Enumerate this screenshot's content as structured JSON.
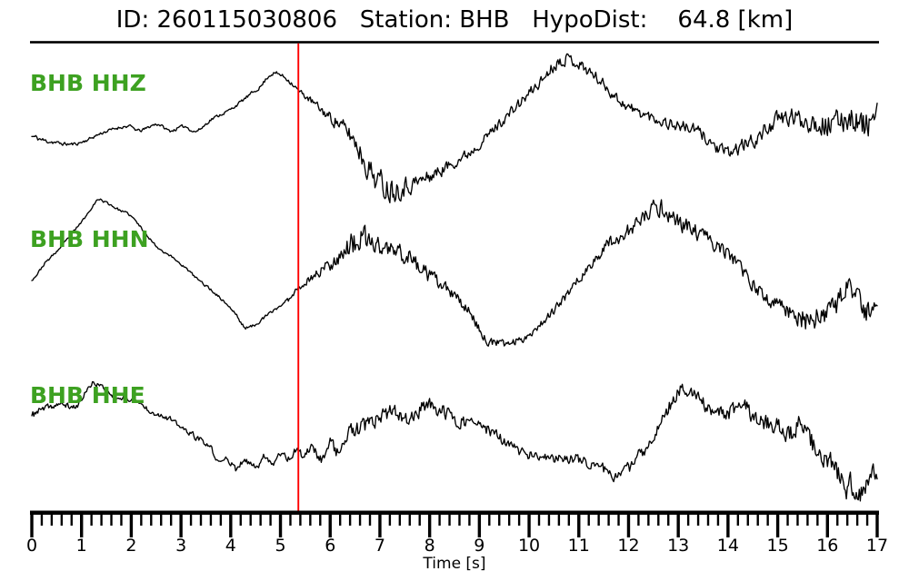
{
  "header": {
    "title": "ID: 260115030806   Station: BHB   HypoDist:    64.8 [km]"
  },
  "chart_data": {
    "type": "line",
    "title": "ID: 260115030806   Station: BHB   HypoDist:    64.8 [km]",
    "station": "BHB",
    "event_id": "260115030806",
    "hypodist_km": 64.8,
    "xlabel": "Time [s]",
    "x_range": [
      0,
      17
    ],
    "x_major_tick_s": 1,
    "x_minor_tick_s": 0.2,
    "grid": false,
    "legend_position": "none",
    "pick_line": {
      "time_s": 5.36,
      "color": "#ff0000"
    },
    "trace_color": "#000000",
    "axis_color": "#000000",
    "channel_label_color": "#3da121",
    "series": [
      {
        "name": "BHB HHZ",
        "seed": 11,
        "shape": [
          [
            0,
            -0.13
          ],
          [
            0.27,
            -0.19
          ],
          [
            0.88,
            -0.23
          ],
          [
            1.5,
            -0.06
          ],
          [
            1.96,
            0.01
          ],
          [
            2.16,
            -0.05
          ],
          [
            2.52,
            0.04
          ],
          [
            2.78,
            -0.05
          ],
          [
            3.07,
            0.01
          ],
          [
            3.29,
            -0.06
          ],
          [
            3.62,
            0.11
          ],
          [
            3.99,
            0.24
          ],
          [
            4.3,
            0.4
          ],
          [
            4.61,
            0.56
          ],
          [
            4.76,
            0.7
          ],
          [
            4.9,
            0.74
          ],
          [
            5.05,
            0.7
          ],
          [
            5.2,
            0.62
          ],
          [
            5.36,
            0.5
          ],
          [
            5.67,
            0.33
          ],
          [
            5.95,
            0.16
          ],
          [
            6.22,
            0.02
          ],
          [
            6.49,
            -0.19
          ],
          [
            6.77,
            -0.56
          ],
          [
            7.0,
            -0.75
          ],
          [
            7.23,
            -0.84
          ],
          [
            7.5,
            -0.81
          ],
          [
            7.77,
            -0.75
          ],
          [
            8.14,
            -0.63
          ],
          [
            8.5,
            -0.48
          ],
          [
            8.87,
            -0.31
          ],
          [
            9.33,
            0.0
          ],
          [
            9.79,
            0.31
          ],
          [
            10.24,
            0.63
          ],
          [
            10.56,
            0.88
          ],
          [
            10.79,
            0.94
          ],
          [
            11.12,
            0.81
          ],
          [
            11.43,
            0.63
          ],
          [
            11.85,
            0.35
          ],
          [
            12.17,
            0.21
          ],
          [
            12.77,
            0.06
          ],
          [
            13.39,
            -0.06
          ],
          [
            13.94,
            -0.35
          ],
          [
            14.31,
            -0.25
          ],
          [
            14.6,
            -0.15
          ],
          [
            14.91,
            0.06
          ],
          [
            15.22,
            0.13
          ],
          [
            15.51,
            0.1
          ],
          [
            15.82,
            0.06
          ],
          [
            16.13,
            0.03
          ],
          [
            16.43,
            0.15
          ],
          [
            16.74,
            0.03
          ],
          [
            17,
            0.15
          ]
        ],
        "noise_env": [
          [
            0,
            0.05
          ],
          [
            0.5,
            0.03
          ],
          [
            1,
            0.025
          ],
          [
            2,
            0.025
          ],
          [
            3,
            0.025
          ],
          [
            4,
            0.025
          ],
          [
            4.8,
            0.03
          ],
          [
            5.36,
            0.04
          ],
          [
            5.8,
            0.07
          ],
          [
            6.2,
            0.12
          ],
          [
            6.7,
            0.2
          ],
          [
            7.2,
            0.23
          ],
          [
            7.6,
            0.15
          ],
          [
            8.2,
            0.1
          ],
          [
            9,
            0.08
          ],
          [
            10,
            0.09
          ],
          [
            10.8,
            0.1
          ],
          [
            11.5,
            0.09
          ],
          [
            12.5,
            0.09
          ],
          [
            13.5,
            0.1
          ],
          [
            14.5,
            0.12
          ],
          [
            15.3,
            0.15
          ],
          [
            16,
            0.2
          ],
          [
            16.6,
            0.23
          ],
          [
            17,
            0.2
          ]
        ]
      },
      {
        "name": "BHB HHN",
        "seed": 23,
        "shape": [
          [
            0,
            -0.1
          ],
          [
            0.27,
            0.13
          ],
          [
            0.59,
            0.35
          ],
          [
            0.88,
            0.59
          ],
          [
            1.06,
            0.75
          ],
          [
            1.32,
            0.99
          ],
          [
            1.43,
            0.98
          ],
          [
            1.79,
            0.85
          ],
          [
            1.98,
            0.78
          ],
          [
            2.29,
            0.54
          ],
          [
            2.52,
            0.35
          ],
          [
            2.78,
            0.23
          ],
          [
            3.02,
            0.1
          ],
          [
            3.33,
            -0.09
          ],
          [
            3.62,
            -0.25
          ],
          [
            3.93,
            -0.44
          ],
          [
            4.12,
            -0.59
          ],
          [
            4.24,
            -0.73
          ],
          [
            4.35,
            -0.76
          ],
          [
            4.54,
            -0.69
          ],
          [
            4.85,
            -0.53
          ],
          [
            5.16,
            -0.38
          ],
          [
            5.36,
            -0.21
          ],
          [
            5.45,
            -0.16
          ],
          [
            5.76,
            0.0
          ],
          [
            6.07,
            0.16
          ],
          [
            6.37,
            0.35
          ],
          [
            6.68,
            0.44
          ],
          [
            6.99,
            0.35
          ],
          [
            7.28,
            0.29
          ],
          [
            7.59,
            0.21
          ],
          [
            7.9,
            0.0
          ],
          [
            8.2,
            -0.16
          ],
          [
            8.51,
            -0.34
          ],
          [
            8.82,
            -0.56
          ],
          [
            9.11,
            -0.91
          ],
          [
            9.42,
            -0.98
          ],
          [
            9.73,
            -0.95
          ],
          [
            10.03,
            -0.84
          ],
          [
            10.34,
            -0.63
          ],
          [
            10.65,
            -0.41
          ],
          [
            10.94,
            -0.13
          ],
          [
            11.25,
            0.09
          ],
          [
            11.56,
            0.38
          ],
          [
            11.86,
            0.5
          ],
          [
            12.17,
            0.66
          ],
          [
            12.48,
            0.85
          ],
          [
            12.66,
            0.88
          ],
          [
            13.08,
            0.66
          ],
          [
            13.39,
            0.54
          ],
          [
            13.69,
            0.41
          ],
          [
            14.0,
            0.25
          ],
          [
            14.31,
            0.0
          ],
          [
            14.6,
            -0.25
          ],
          [
            14.91,
            -0.41
          ],
          [
            15.22,
            -0.5
          ],
          [
            15.51,
            -0.63
          ],
          [
            15.82,
            -0.63
          ],
          [
            16.13,
            -0.5
          ],
          [
            16.43,
            -0.21
          ],
          [
            16.74,
            -0.54
          ],
          [
            17,
            -0.46
          ]
        ],
        "noise_env": [
          [
            0,
            0.02
          ],
          [
            1,
            0.02
          ],
          [
            2,
            0.02
          ],
          [
            3,
            0.02
          ],
          [
            4,
            0.025
          ],
          [
            5,
            0.03
          ],
          [
            5.4,
            0.05
          ],
          [
            6,
            0.12
          ],
          [
            6.5,
            0.22
          ],
          [
            7,
            0.2
          ],
          [
            7.5,
            0.15
          ],
          [
            8,
            0.12
          ],
          [
            9,
            0.07
          ],
          [
            10,
            0.06
          ],
          [
            11,
            0.07
          ],
          [
            12,
            0.12
          ],
          [
            12.7,
            0.15
          ],
          [
            13.5,
            0.13
          ],
          [
            14,
            0.1
          ],
          [
            15,
            0.12
          ],
          [
            15.5,
            0.24
          ],
          [
            16,
            0.16
          ],
          [
            16.5,
            0.22
          ],
          [
            17,
            0.16
          ]
        ]
      },
      {
        "name": "BHB HHE",
        "seed": 37,
        "shape": [
          [
            0,
            0.4
          ],
          [
            0.1,
            0.46
          ],
          [
            0.27,
            0.5
          ],
          [
            0.59,
            0.56
          ],
          [
            0.88,
            0.53
          ],
          [
            1.19,
            0.81
          ],
          [
            1.32,
            0.84
          ],
          [
            1.5,
            0.73
          ],
          [
            1.79,
            0.65
          ],
          [
            2.1,
            0.6
          ],
          [
            2.41,
            0.46
          ],
          [
            2.71,
            0.38
          ],
          [
            3.02,
            0.23
          ],
          [
            3.33,
            0.09
          ],
          [
            3.62,
            -0.06
          ],
          [
            3.75,
            -0.25
          ],
          [
            3.93,
            -0.19
          ],
          [
            4.12,
            -0.35
          ],
          [
            4.24,
            -0.23
          ],
          [
            4.54,
            -0.29
          ],
          [
            4.67,
            -0.15
          ],
          [
            4.85,
            -0.25
          ],
          [
            5.03,
            -0.1
          ],
          [
            5.16,
            -0.19
          ],
          [
            5.34,
            -0.06
          ],
          [
            5.45,
            -0.15
          ],
          [
            5.63,
            -0.03
          ],
          [
            5.82,
            -0.19
          ],
          [
            6.0,
            0.03
          ],
          [
            6.18,
            -0.1
          ],
          [
            6.37,
            0.15
          ],
          [
            6.68,
            0.23
          ],
          [
            6.99,
            0.35
          ],
          [
            7.28,
            0.44
          ],
          [
            7.59,
            0.35
          ],
          [
            7.9,
            0.53
          ],
          [
            8.2,
            0.48
          ],
          [
            8.51,
            0.35
          ],
          [
            9.11,
            0.23
          ],
          [
            9.73,
            -0.06
          ],
          [
            10.34,
            -0.19
          ],
          [
            10.94,
            -0.19
          ],
          [
            11.56,
            -0.35
          ],
          [
            11.67,
            -0.41
          ],
          [
            11.86,
            -0.4
          ],
          [
            12.17,
            -0.19
          ],
          [
            12.48,
            0.1
          ],
          [
            12.77,
            0.44
          ],
          [
            13.03,
            0.78
          ],
          [
            13.26,
            0.69
          ],
          [
            13.57,
            0.53
          ],
          [
            13.69,
            0.48
          ],
          [
            14.0,
            0.44
          ],
          [
            14.31,
            0.53
          ],
          [
            14.6,
            0.35
          ],
          [
            14.91,
            0.28
          ],
          [
            15.22,
            0.15
          ],
          [
            15.51,
            0.28
          ],
          [
            15.82,
            -0.15
          ],
          [
            16.13,
            -0.28
          ],
          [
            16.37,
            -0.62
          ],
          [
            16.43,
            -0.4
          ],
          [
            16.56,
            -0.75
          ],
          [
            16.74,
            -0.6
          ],
          [
            16.92,
            -0.3
          ],
          [
            17,
            -0.45
          ]
        ],
        "noise_env": [
          [
            0,
            0.06
          ],
          [
            0.5,
            0.05
          ],
          [
            1,
            0.05
          ],
          [
            2,
            0.04
          ],
          [
            3,
            0.05
          ],
          [
            4,
            0.05
          ],
          [
            5,
            0.05
          ],
          [
            5.5,
            0.06
          ],
          [
            6,
            0.1
          ],
          [
            6.5,
            0.15
          ],
          [
            7,
            0.15
          ],
          [
            7.5,
            0.12
          ],
          [
            8,
            0.12
          ],
          [
            9,
            0.1
          ],
          [
            10,
            0.08
          ],
          [
            11,
            0.08
          ],
          [
            12,
            0.1
          ],
          [
            13,
            0.12
          ],
          [
            14,
            0.12
          ],
          [
            15,
            0.15
          ],
          [
            15.8,
            0.17
          ],
          [
            16.3,
            0.19
          ],
          [
            16.7,
            0.16
          ],
          [
            17,
            0.14
          ]
        ]
      }
    ]
  }
}
